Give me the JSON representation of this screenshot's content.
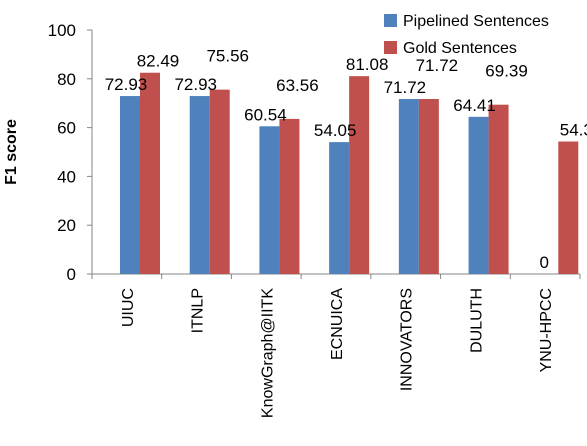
{
  "chart_data": {
    "type": "bar",
    "title": "",
    "xlabel": "",
    "ylabel": "F1 score",
    "ylim": [
      0,
      100
    ],
    "yticks": [
      0,
      20,
      40,
      60,
      80,
      100
    ],
    "grid": false,
    "legend_position": "top-right",
    "categories": [
      "UIUC",
      "ITNLP",
      "KnowGraph@IITK",
      "ECNUICA",
      "INNOVATORS",
      "DULUTH",
      "YNU-HPCC"
    ],
    "series": [
      {
        "name": "Pipelined Sentences",
        "color": "#4F81BD",
        "values": [
          72.93,
          72.93,
          60.54,
          54.05,
          71.72,
          64.41,
          0
        ],
        "labels": [
          "72.93",
          "72.93",
          "60.54",
          "54.05",
          "71.72",
          "64.41",
          "0"
        ]
      },
      {
        "name": "Gold Sentences",
        "color": "#C0504D",
        "values": [
          82.49,
          75.56,
          63.56,
          81.08,
          71.72,
          69.39,
          54.3
        ],
        "labels": [
          "82.49",
          "75.56",
          "63.56",
          "81.08",
          "71.72",
          "69.39",
          "54.3"
        ]
      }
    ]
  }
}
